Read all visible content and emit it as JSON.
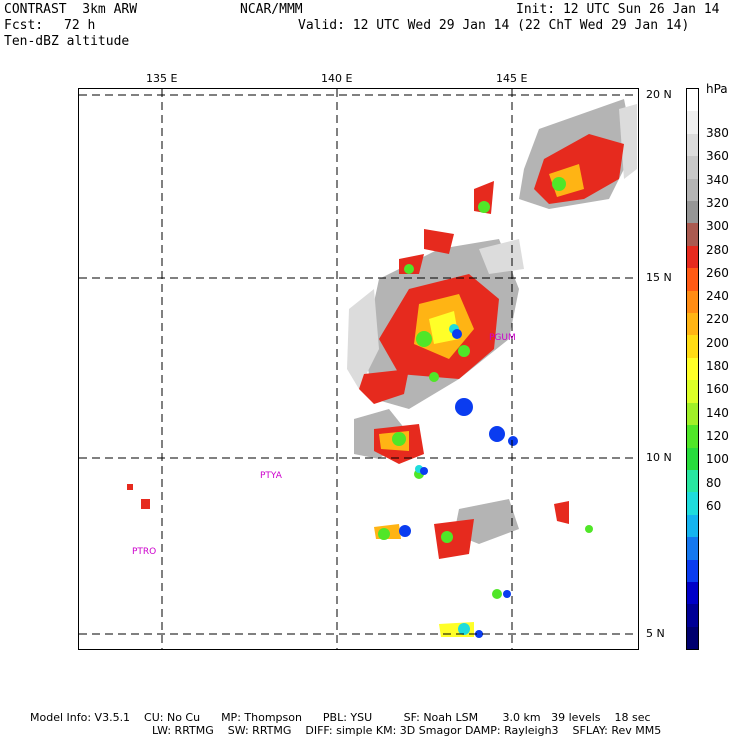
{
  "header": {
    "model": "CONTRAST  3km ARW",
    "fcst_label": "Fcst:",
    "fcst_value": "72 h",
    "field": "Ten-dBZ altitude",
    "center": "NCAR/MMM",
    "init": "Init: 12 UTC Sun 26 Jan 14",
    "valid": "Valid: 12 UTC Wed 29 Jan 14 (22 ChT Wed 29 Jan 14)"
  },
  "lon_ticks": [
    "135 E",
    "140 E",
    "145 E"
  ],
  "lat_ticks": [
    "20 N",
    "15 N",
    "10 N",
    "5 N"
  ],
  "stations": [
    "PGUM",
    "PTYA",
    "PTRO"
  ],
  "colorbar": {
    "unit": "hPa",
    "labels": [
      "380",
      "360",
      "340",
      "320",
      "300",
      "280",
      "260",
      "240",
      "220",
      "200",
      "180",
      "160",
      "140",
      "120",
      "100",
      "80",
      "60"
    ],
    "colors": [
      "#ffffff",
      "#f0f0f0",
      "#dcdcdc",
      "#c8c8c8",
      "#b4b4b4",
      "#969696",
      "#aa5a50",
      "#e62a1e",
      "#ff5a14",
      "#ff8c14",
      "#ffb414",
      "#ffdc14",
      "#ffff28",
      "#dcff28",
      "#a0f028",
      "#50e628",
      "#28dc3c",
      "#28e6a0",
      "#1edcdc",
      "#14b4f0",
      "#1478f0",
      "#0a3cf0",
      "#0000c8",
      "#000096",
      "#00006e"
    ]
  },
  "footer": {
    "line1": "Model Info: V3.5.1    CU: No Cu      MP: Thompson      PBL: YSU         SF: Noah LSM       3.0 km   39 levels    18 sec",
    "line2": "LW: RRTMG    SW: RRTMG    DIFF: simple KM: 3D Smagor DAMP: Rayleigh3    SFLAY: Rev MM5"
  }
}
